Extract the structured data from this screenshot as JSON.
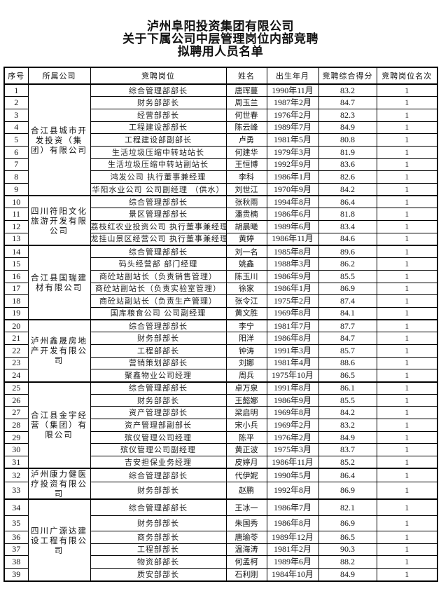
{
  "title": {
    "line1": "泸州阜阳投资集团有限公司",
    "line2": "关于下属公司中层管理岗位内部竞聘",
    "line3": "拟聘用人员名单"
  },
  "table": {
    "headers": [
      "序号",
      "所属公司",
      "竞聘岗位",
      "姓名",
      "出生年月",
      "竞聘综合得分",
      "竞聘岗位名次"
    ],
    "groups": [
      {
        "company": "合江县城市开发投资（集团）有限公司",
        "rows": [
          [
            "1",
            "综合管理部部长",
            "唐珲蔓",
            "1990年11月",
            "83.2",
            "1"
          ],
          [
            "2",
            "财务部部长",
            "周玉兰",
            "1987年2月",
            "84.7",
            "1"
          ],
          [
            "3",
            "经营部部长",
            "何世春",
            "1976年2月",
            "82.3",
            "1"
          ],
          [
            "4",
            "工程建设部部长",
            "陈云峰",
            "1989年7月",
            "84.9",
            "1"
          ],
          [
            "5",
            "工程建设部副部长",
            "卢勇",
            "1981年5月",
            "80.8",
            "1"
          ],
          [
            "6",
            "生活垃圾压缩中转站站长",
            "何建华",
            "1979年3月",
            "81.9",
            "1"
          ],
          [
            "7",
            "生活垃圾压缩中转站副站长",
            "王恒博",
            "1992年9月",
            "83.6",
            "1"
          ],
          [
            "8",
            "鸿发公司 执行董事兼经理",
            "李科",
            "1986年1月",
            "82.6",
            "1"
          ],
          [
            "9",
            "华阳水业公司 公司副经理 （供水）",
            "刘世江",
            "1970年9月",
            "84.2",
            "1"
          ]
        ]
      },
      {
        "company": "四川符阳文化旅游开发有限公司",
        "rows": [
          [
            "10",
            "综合管理部部长",
            "张秋雨",
            "1994年8月",
            "86.4",
            "1"
          ],
          [
            "11",
            "景区管理部部长",
            "潘贵楠",
            "1986年6月",
            "81.8",
            "1"
          ],
          [
            "12",
            "荔枝红农业投资公司 执行董事兼经理",
            "胡晨曦",
            "1989年6月",
            "83.4",
            "1"
          ],
          [
            "13",
            "龙挂山景区经营公司 执行董事兼经理",
            "黄婷",
            "1986年11月",
            "84.6",
            "1"
          ]
        ]
      },
      {
        "company": "合江县国瑞建材有限公司",
        "rows": [
          [
            "14",
            "综合管理部部长",
            "刘一名",
            "1985年8月",
            "89.6",
            "1"
          ],
          [
            "15",
            "码头经营部 部门经理",
            "姚鑫",
            "1988年3月",
            "86.2",
            "1"
          ],
          [
            "16",
            "商砼站副站长（负责销售管理）",
            "陈玉川",
            "1986年9月",
            "85.5",
            "1"
          ],
          [
            "17",
            "商砼站副站长（负责实验室管理）",
            "徐家",
            "1986年1月",
            "86.9",
            "1"
          ],
          [
            "18",
            "商砼站副站长（负责生产管理）",
            "张令江",
            "1975年2月",
            "87.4",
            "1"
          ],
          [
            "19",
            "国库粮食公司 公司副经理",
            "黄文胜",
            "1969年8月",
            "84.1",
            "1"
          ]
        ]
      },
      {
        "company": "泸州鑫晟房地产开发有限公司",
        "rows": [
          [
            "20",
            "综合管理部部长",
            "李宁",
            "1981年7月",
            "87.7",
            "1"
          ],
          [
            "21",
            "财务部部长",
            "阳洋",
            "1986年8月",
            "84.7",
            "1"
          ],
          [
            "22",
            "工程部部长",
            "钟涛",
            "1991年3月",
            "85.7",
            "1"
          ],
          [
            "23",
            "营销策划部部长",
            "刘娜",
            "1981年4月",
            "88.6",
            "1"
          ],
          [
            "24",
            "聚鑫物业公司经理",
            "周兵",
            "1975年10月",
            "86.5",
            "1"
          ]
        ]
      },
      {
        "company": "合江县金宇经营（集团）有限公司",
        "rows": [
          [
            "25",
            "综合管理部部长",
            "卓万泉",
            "1991年8月",
            "86.1",
            "1"
          ],
          [
            "26",
            "财务部部长",
            "王懿娜",
            "1986年9月",
            "85.5",
            "1"
          ],
          [
            "27",
            "资产管理部部长",
            "梁启明",
            "1969年8月",
            "84.2",
            "1"
          ],
          [
            "28",
            "资产管理部副部长",
            "宋小兵",
            "1969年2月",
            "83.2",
            "1"
          ],
          [
            "29",
            "殡仪管理公司经理",
            "陈平",
            "1976年2月",
            "84.9",
            "1"
          ],
          [
            "30",
            "殡仪管理公司副经理",
            "黄正波",
            "1975年3月",
            "83.7",
            "1"
          ],
          [
            "31",
            "吉安担保业务经理",
            "皮婷月",
            "1986年11月",
            "85.2",
            "1"
          ]
        ]
      },
      {
        "company": "泸州康力健医疗投资有限公司",
        "rows": [
          [
            "32",
            "综合管理部部长",
            "代伊妮",
            "1990年5月",
            "86.4",
            "1"
          ],
          [
            "33",
            "财务部部长",
            "赵鹏",
            "1992年8月",
            "86.9",
            "1"
          ]
        ]
      },
      {
        "company": "四川广源达建设工程有限公司",
        "rows": [
          [
            "34",
            "综合管理部部长",
            "王冰一",
            "1986年7月",
            "82.1",
            "1"
          ],
          [
            "35",
            "财务部部长",
            "朱国秀",
            "1986年8月",
            "86.9",
            "1"
          ],
          [
            "36",
            "商务部部长",
            "唐瑜苓",
            "1989年12月",
            "86.5",
            "1"
          ],
          [
            "37",
            "工程部部长",
            "温海涛",
            "1981年2月",
            "90.3",
            "1"
          ],
          [
            "38",
            "物资部部长",
            "何孟柯",
            "1989年6月",
            "88.2",
            "1"
          ],
          [
            "39",
            "质安部部长",
            "石利刚",
            "1984年10月",
            "84.9",
            "1"
          ]
        ]
      }
    ]
  }
}
